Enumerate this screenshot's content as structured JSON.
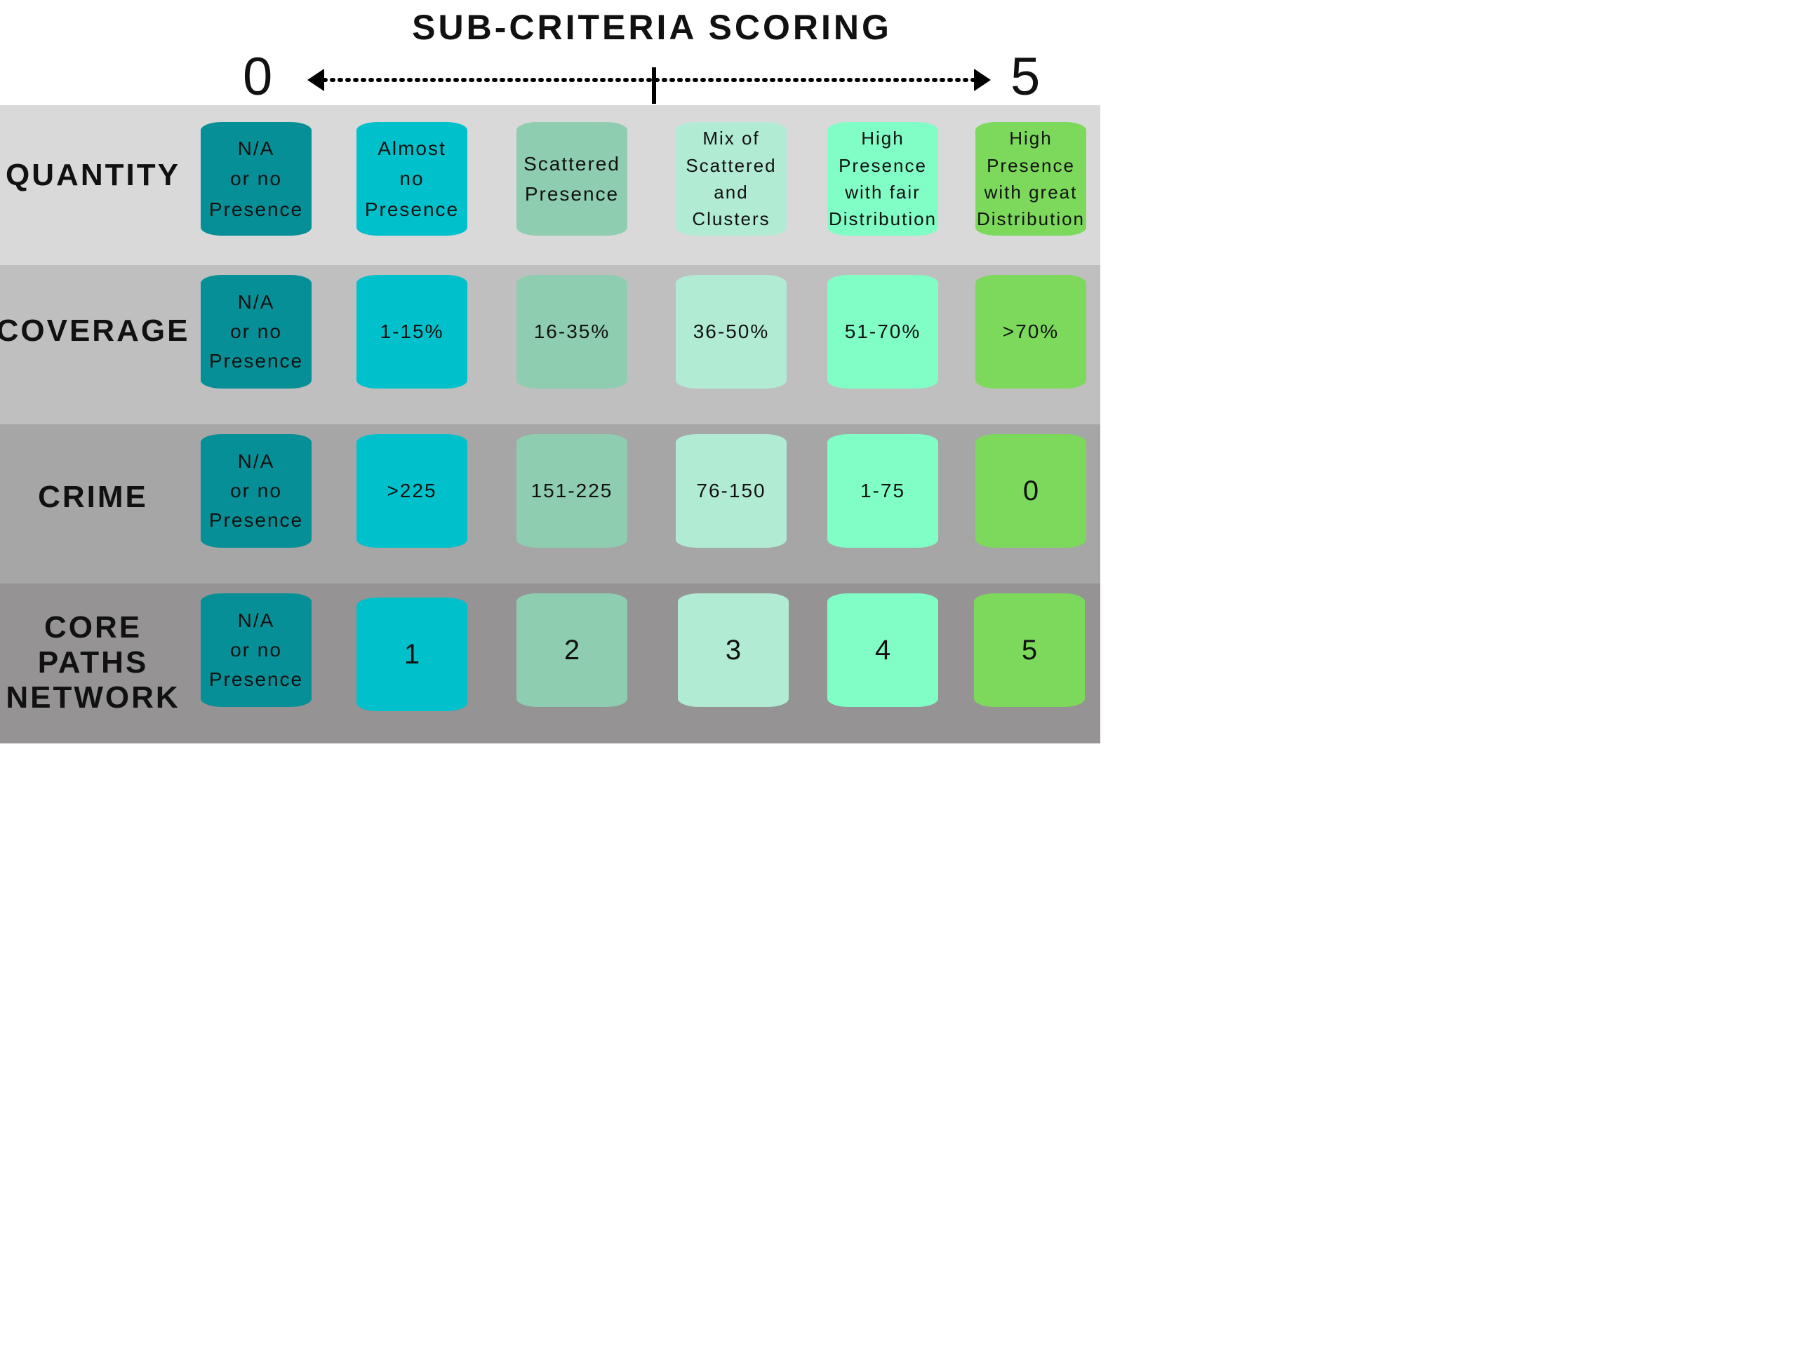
{
  "title": "SUB-CRITERIA SCORING",
  "scale": {
    "min": "0",
    "max": "5"
  },
  "colors": {
    "score0": "#068f97",
    "score1": "#00c0cb",
    "score2": "#8ecdb0",
    "score3": "#b2ebd4",
    "score4": "#80fec6",
    "score5": "#7cd95b",
    "band_quantity": "#d9d9d9",
    "band_coverage": "#bfbfbf",
    "band_crime": "#a6a6a6",
    "band_core_paths": "#959393"
  },
  "rows": [
    {
      "label": "QUANTITY",
      "cells": [
        "N/A\nor no\nPresence",
        "Almost\nno\nPresence",
        "Scattered\nPresence",
        "Mix of\nScattered\nand\nClusters",
        "High\nPresence\nwith fair\nDistribution",
        "High\nPresence\nwith great\nDistribution"
      ]
    },
    {
      "label": "COVERAGE",
      "cells": [
        "N/A\nor no\nPresence",
        "1-15%",
        "16-35%",
        "36-50%",
        "51-70%",
        ">70%"
      ]
    },
    {
      "label": "CRIME",
      "cells": [
        "N/A\nor no\nPresence",
        ">225",
        "151-225",
        "76-150",
        "1-75",
        "0"
      ]
    },
    {
      "label": "CORE\nPATHS\nNETWORK",
      "cells": [
        "N/A\nor no\nPresence",
        "1",
        "2",
        "3",
        "4",
        "5"
      ]
    }
  ]
}
